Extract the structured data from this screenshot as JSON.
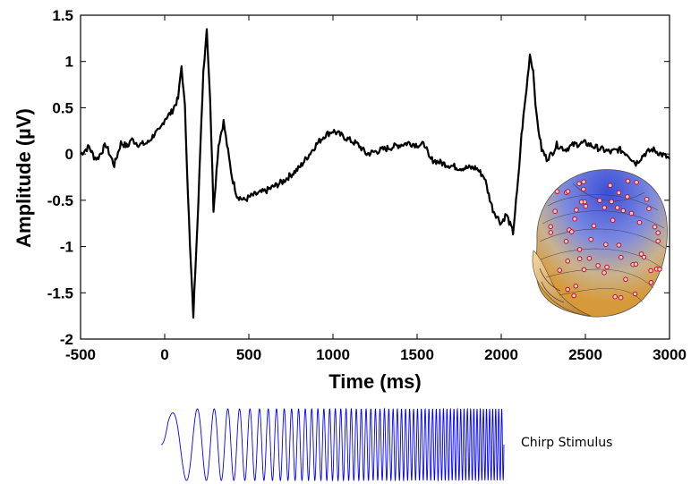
{
  "chart_data": [
    {
      "type": "line",
      "title": "",
      "xlabel": "Time (ms)",
      "ylabel": "Amplitude (µV)",
      "xlim": [
        -500,
        3000
      ],
      "ylim": [
        -2,
        1.5
      ],
      "xticks": [
        -500,
        0,
        500,
        1000,
        1500,
        2000,
        2500,
        3000
      ],
      "yticks": [
        1.5,
        1,
        0.5,
        0,
        -0.5,
        -1,
        -1.5,
        -2
      ],
      "grid": false,
      "series": [
        {
          "color": "#000000",
          "x": [
            -500,
            -450,
            -420,
            -400,
            -350,
            -300,
            -260,
            -220,
            -200,
            -150,
            -100,
            -60,
            -30,
            0,
            40,
            80,
            100,
            120,
            150,
            170,
            200,
            230,
            250,
            270,
            290,
            320,
            350,
            370,
            400,
            430,
            470,
            520,
            600,
            700,
            800,
            900,
            950,
            1000,
            1050,
            1100,
            1150,
            1200,
            1300,
            1400,
            1450,
            1500,
            1550,
            1570,
            1650,
            1750,
            1850,
            1900,
            1920,
            1950,
            2000,
            2030,
            2070,
            2100,
            2120,
            2150,
            2170,
            2190,
            2210,
            2240,
            2270,
            2300,
            2330,
            2380,
            2430,
            2500,
            2550,
            2600,
            2650,
            2700,
            2750,
            2800,
            2850,
            2900,
            2950,
            3000
          ],
          "values": [
            0.0,
            0.08,
            -0.03,
            -0.05,
            0.1,
            -0.12,
            0.12,
            0.08,
            0.16,
            0.1,
            0.12,
            0.22,
            0.25,
            0.38,
            0.45,
            0.6,
            0.95,
            0.5,
            -1.0,
            -1.75,
            -0.5,
            0.9,
            1.35,
            0.6,
            -0.6,
            0.1,
            0.35,
            0.1,
            -0.25,
            -0.45,
            -0.5,
            -0.45,
            -0.4,
            -0.3,
            -0.15,
            0.1,
            0.2,
            0.25,
            0.2,
            0.15,
            0.1,
            0.0,
            0.05,
            0.1,
            0.12,
            0.1,
            0.1,
            -0.05,
            -0.1,
            -0.15,
            -0.15,
            -0.25,
            -0.4,
            -0.6,
            -0.75,
            -0.65,
            -0.85,
            -0.3,
            0.2,
            0.7,
            1.08,
            0.9,
            0.4,
            0.05,
            -0.05,
            0.0,
            0.1,
            0.05,
            0.1,
            0.12,
            0.08,
            0.05,
            0.02,
            0.05,
            0.0,
            -0.1,
            0.0,
            0.05,
            0.0,
            -0.05
          ]
        }
      ]
    },
    {
      "type": "line",
      "title": "",
      "series": [
        {
          "name": "Chirp Stimulus",
          "color": "#0000ff",
          "x": [
            0,
            0.02,
            0.05,
            0.1,
            0.2,
            0.3,
            0.4,
            0.5,
            0.6,
            0.7,
            0.8,
            0.9,
            1.0
          ],
          "values": [
            0,
            0.8,
            1.0,
            1.0,
            1.0,
            1.0,
            1.0,
            1.0,
            1.0,
            1.0,
            1.0,
            1.0,
            1.0
          ]
        }
      ]
    }
  ],
  "stimulus": {
    "label": "Chirp Stimulus"
  },
  "inset": {
    "icon": "eeg-head-topography-icon"
  }
}
